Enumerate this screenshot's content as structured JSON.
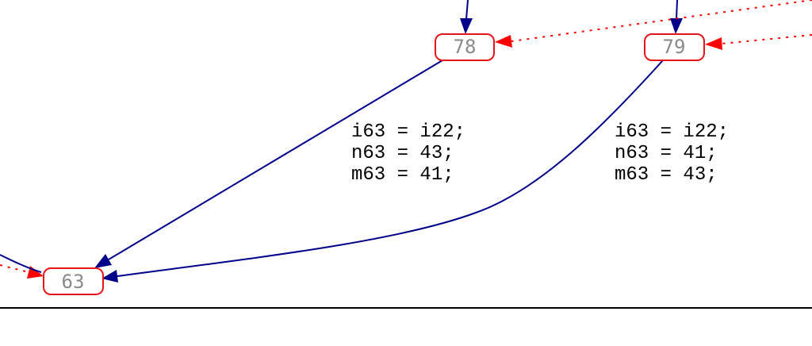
{
  "diagram": {
    "nodes": [
      {
        "id": "78",
        "label": "78"
      },
      {
        "id": "79",
        "label": "79"
      },
      {
        "id": "63",
        "label": "63"
      }
    ],
    "edges": [
      {
        "from": "78",
        "to": "63",
        "lines": [
          "i63 = i22;",
          "n63 = 43;",
          "m63 = 41;"
        ]
      },
      {
        "from": "79",
        "to": "63",
        "lines": [
          "i63 = i22;",
          "n63 = 41;",
          "m63 = 43;"
        ]
      }
    ],
    "colors": {
      "node_border": "#e8141a",
      "node_text": "#8a8a8a",
      "edge_solid": "#00008b",
      "edge_dotted": "#ff0000"
    }
  }
}
